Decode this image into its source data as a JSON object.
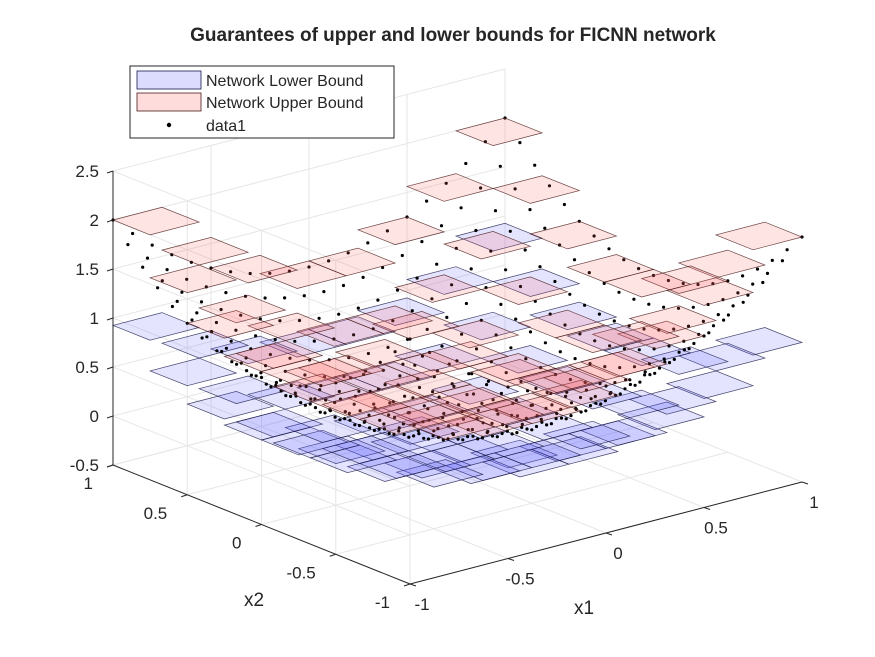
{
  "chart_data": {
    "type": "surface3d",
    "title": "Guarantees of upper and lower bounds for FICNN network",
    "xlabel": "x1",
    "ylabel": "x2",
    "zlabel": "",
    "xlim": [
      -1,
      1
    ],
    "ylim": [
      -1,
      1
    ],
    "zlim": [
      -0.5,
      2.5
    ],
    "xticks": [
      -1,
      -0.5,
      0,
      0.5,
      1
    ],
    "xtick_labels": [
      "-1",
      "-0.5",
      "0",
      "0.5",
      "1"
    ],
    "yticks": [
      -1,
      -0.5,
      0,
      0.5,
      1
    ],
    "ytick_labels": [
      "-1",
      "-0.5",
      "0",
      "0.5",
      "1"
    ],
    "zticks": [
      -0.5,
      0,
      0.5,
      1,
      1.5,
      2,
      2.5
    ],
    "ztick_labels": [
      "-0.5",
      "0",
      "0.5",
      "1",
      "1.5",
      "2",
      "2.5"
    ],
    "grid": true,
    "legend_position": "top-left",
    "legend": [
      {
        "label": "Network Lower Bound",
        "kind": "patch",
        "fill": "#dcdcff",
        "stroke": "#1a1a4a"
      },
      {
        "label": "Network Upper Bound",
        "kind": "patch",
        "fill": "#ffdcdc",
        "stroke": "#4a1a1a"
      },
      {
        "label": "data1",
        "kind": "marker",
        "color": "#000000"
      }
    ],
    "function": "z = x1^2 + x2^2",
    "grid_cells": {
      "count_per_axis": 8,
      "edges": [
        -1,
        -0.75,
        -0.5,
        -0.25,
        0,
        0.25,
        0.5,
        0.75,
        1
      ]
    },
    "upper_bound_color": "#ff6060",
    "lower_bound_color": "#6060ff",
    "data_samples_per_axis": 21
  }
}
